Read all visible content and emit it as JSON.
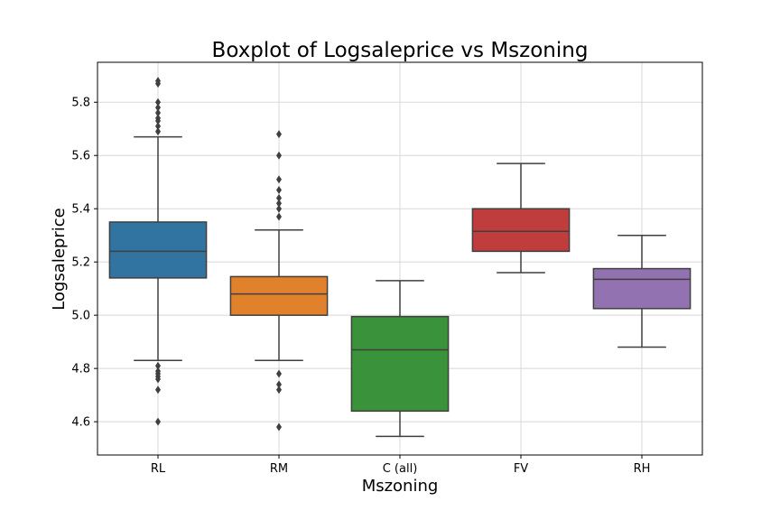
{
  "chart_data": {
    "type": "box",
    "title": "Boxplot of Logsaleprice vs Mszoning",
    "xlabel": "Mszoning",
    "ylabel": "Logsaleprice",
    "ylim": [
      4.475,
      5.95
    ],
    "yticks": [
      "4.6",
      "4.8",
      "5.0",
      "5.2",
      "5.4",
      "5.6",
      "5.8"
    ],
    "grid": true,
    "categories": [
      "RL",
      "RM",
      "C (all)",
      "FV",
      "RH"
    ],
    "colors": [
      "#3274a1",
      "#e1812c",
      "#3a923a",
      "#c03d3e",
      "#9372b2"
    ],
    "boxes": [
      {
        "category": "RL",
        "whislo": 4.83,
        "q1": 5.14,
        "med": 5.24,
        "q3": 5.35,
        "whishi": 5.67,
        "fliers": [
          5.88,
          5.87,
          5.8,
          5.78,
          5.76,
          5.74,
          5.73,
          5.71,
          5.69,
          4.81,
          4.79,
          4.78,
          4.77,
          4.76,
          4.72,
          4.6
        ]
      },
      {
        "category": "RM",
        "whislo": 4.83,
        "q1": 5.0,
        "med": 5.08,
        "q3": 5.145,
        "whishi": 5.32,
        "fliers": [
          5.68,
          5.6,
          5.51,
          5.47,
          5.44,
          5.42,
          5.4,
          5.37,
          4.78,
          4.74,
          4.72,
          4.58
        ]
      },
      {
        "category": "C (all)",
        "whislo": 4.545,
        "q1": 4.64,
        "med": 4.87,
        "q3": 4.995,
        "whishi": 5.13,
        "fliers": []
      },
      {
        "category": "FV",
        "whislo": 5.16,
        "q1": 5.24,
        "med": 5.315,
        "q3": 5.4,
        "whishi": 5.57,
        "fliers": []
      },
      {
        "category": "RH",
        "whislo": 4.88,
        "q1": 5.025,
        "med": 5.135,
        "q3": 5.175,
        "whishi": 5.3,
        "fliers": []
      }
    ]
  }
}
